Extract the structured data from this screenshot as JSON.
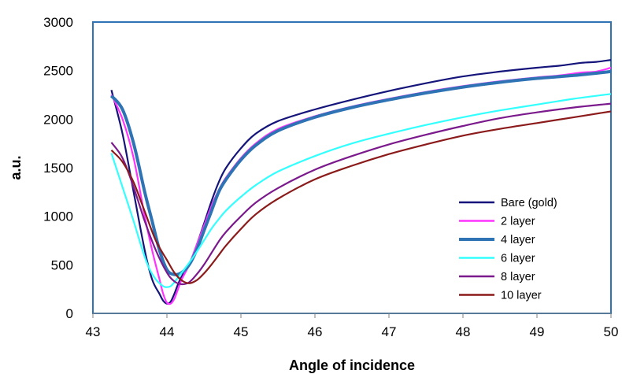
{
  "chart_data": {
    "type": "line",
    "title": "",
    "xlabel": "Angle of incidence",
    "ylabel": "a.u.",
    "xlim": [
      43,
      50
    ],
    "ylim": [
      0,
      3000
    ],
    "xticks": [
      43,
      44,
      45,
      46,
      47,
      48,
      49,
      50
    ],
    "yticks": [
      0,
      500,
      1000,
      1500,
      2000,
      2500,
      3000
    ],
    "grid": false,
    "legend_position": "bottom-right inside plot",
    "series": [
      {
        "name": "Bare (gold)",
        "color": "#14147a",
        "x": [
          43.25,
          43.4,
          43.55,
          43.7,
          43.8,
          43.9,
          43.95,
          44.0,
          44.05,
          44.1,
          44.15,
          44.2,
          44.3,
          44.4,
          44.5,
          44.6,
          44.7,
          44.8,
          45.0,
          45.2,
          45.5,
          46.0,
          46.5,
          47.0,
          47.5,
          48.0,
          48.5,
          49.0,
          49.3,
          49.6,
          49.8,
          50.0
        ],
        "y": [
          2300,
          1850,
          1250,
          650,
          350,
          200,
          130,
          100,
          120,
          200,
          300,
          380,
          500,
          700,
          920,
          1150,
          1350,
          1500,
          1700,
          1850,
          1980,
          2100,
          2200,
          2290,
          2370,
          2440,
          2490,
          2530,
          2550,
          2580,
          2590,
          2610
        ]
      },
      {
        "name": "2 layer",
        "color": "#ff33ff",
        "x": [
          43.25,
          43.4,
          43.55,
          43.7,
          43.8,
          43.9,
          43.95,
          44.0,
          44.05,
          44.1,
          44.15,
          44.2,
          44.3,
          44.4,
          44.5,
          44.6,
          44.7,
          44.8,
          45.0,
          45.2,
          45.5,
          46.0,
          46.5,
          47.0,
          47.5,
          48.0,
          48.5,
          49.0,
          49.3,
          49.6,
          49.8,
          50.0
        ],
        "y": [
          2250,
          2000,
          1600,
          1000,
          650,
          350,
          200,
          110,
          100,
          150,
          250,
          350,
          500,
          700,
          900,
          1100,
          1270,
          1400,
          1600,
          1750,
          1900,
          2030,
          2130,
          2210,
          2280,
          2340,
          2390,
          2430,
          2450,
          2480,
          2490,
          2530
        ]
      },
      {
        "name": "4 layer",
        "color": "#2e74b5",
        "x": [
          43.25,
          43.4,
          43.55,
          43.7,
          43.8,
          43.9,
          44.0,
          44.1,
          44.2,
          44.3,
          44.4,
          44.5,
          44.6,
          44.7,
          44.8,
          45.0,
          45.2,
          45.5,
          46.0,
          46.5,
          47.0,
          47.5,
          48.0,
          48.5,
          49.0,
          49.5,
          50.0
        ],
        "y": [
          2240,
          2100,
          1750,
          1250,
          950,
          650,
          450,
          400,
          420,
          500,
          650,
          850,
          1050,
          1250,
          1380,
          1580,
          1730,
          1880,
          2020,
          2120,
          2200,
          2270,
          2330,
          2380,
          2420,
          2450,
          2490
        ]
      },
      {
        "name": "6 layer",
        "color": "#33ffff",
        "x": [
          43.25,
          43.4,
          43.55,
          43.65,
          43.75,
          43.85,
          43.95,
          44.0,
          44.05,
          44.1,
          44.15,
          44.2,
          44.3,
          44.4,
          44.5,
          44.6,
          44.7,
          44.8,
          45.0,
          45.2,
          45.5,
          46.0,
          46.5,
          47.0,
          47.5,
          48.0,
          48.5,
          49.0,
          49.5,
          50.0
        ],
        "y": [
          1650,
          1300,
          950,
          700,
          480,
          350,
          280,
          270,
          280,
          320,
          370,
          420,
          520,
          630,
          750,
          870,
          970,
          1060,
          1200,
          1320,
          1460,
          1620,
          1750,
          1850,
          1940,
          2020,
          2090,
          2150,
          2210,
          2260
        ]
      },
      {
        "name": "8 layer",
        "color": "#7b1a8c",
        "x": [
          43.25,
          43.4,
          43.55,
          43.7,
          43.85,
          44.0,
          44.1,
          44.2,
          44.3,
          44.4,
          44.5,
          44.6,
          44.7,
          44.8,
          45.0,
          45.2,
          45.5,
          46.0,
          46.5,
          47.0,
          47.5,
          48.0,
          48.5,
          49.0,
          49.5,
          50.0
        ],
        "y": [
          1760,
          1600,
          1300,
          950,
          650,
          420,
          330,
          300,
          320,
          400,
          500,
          620,
          740,
          840,
          1000,
          1140,
          1290,
          1480,
          1620,
          1740,
          1840,
          1930,
          2010,
          2070,
          2120,
          2160
        ]
      },
      {
        "name": "10 layer",
        "color": "#8b1a1a",
        "x": [
          43.25,
          43.4,
          43.55,
          43.7,
          43.85,
          44.0,
          44.1,
          44.2,
          44.3,
          44.4,
          44.5,
          44.6,
          44.7,
          44.8,
          45.0,
          45.2,
          45.5,
          46.0,
          46.5,
          47.0,
          47.5,
          48.0,
          48.5,
          49.0,
          49.5,
          50.0
        ],
        "y": [
          1680,
          1560,
          1350,
          1050,
          750,
          550,
          420,
          340,
          310,
          340,
          410,
          500,
          600,
          700,
          870,
          1020,
          1180,
          1380,
          1520,
          1640,
          1740,
          1830,
          1900,
          1960,
          2020,
          2080
        ]
      }
    ]
  }
}
